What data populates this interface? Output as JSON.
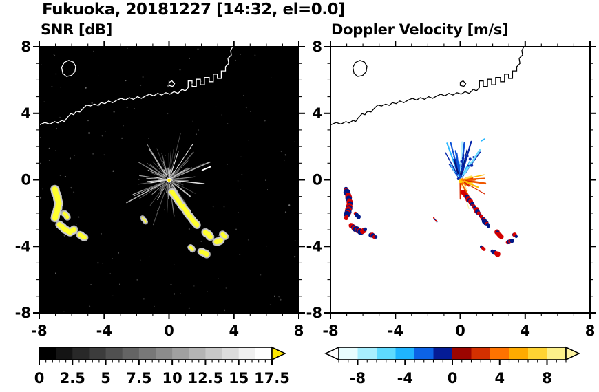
{
  "title": "Fukuoka, 20181227 [14:32, el=0.0]",
  "panels": {
    "snr": {
      "label": "SNR [dB]"
    },
    "doppler": {
      "label": "Doppler Velocity [m/s]"
    }
  },
  "coastline": {
    "main": [
      [
        -8.0,
        3.3
      ],
      [
        -7.65,
        3.45
      ],
      [
        -7.35,
        3.35
      ],
      [
        -7.05,
        3.5
      ],
      [
        -6.85,
        3.42
      ],
      [
        -6.6,
        3.58
      ],
      [
        -6.45,
        3.5
      ],
      [
        -6.3,
        3.72
      ],
      [
        -6.05,
        3.98
      ],
      [
        -5.88,
        3.92
      ],
      [
        -5.72,
        4.12
      ],
      [
        -5.5,
        4.08
      ],
      [
        -5.28,
        4.32
      ],
      [
        -5.08,
        4.5
      ],
      [
        -4.85,
        4.44
      ],
      [
        -4.6,
        4.55
      ],
      [
        -4.38,
        4.48
      ],
      [
        -4.18,
        4.64
      ],
      [
        -3.95,
        4.58
      ],
      [
        -3.72,
        4.74
      ],
      [
        -3.48,
        4.64
      ],
      [
        -3.2,
        4.8
      ],
      [
        -2.95,
        4.9
      ],
      [
        -2.7,
        4.8
      ],
      [
        -2.45,
        4.94
      ],
      [
        -2.2,
        4.84
      ],
      [
        -1.95,
        5.0
      ],
      [
        -1.7,
        4.9
      ],
      [
        -1.45,
        5.04
      ],
      [
        -1.2,
        5.15
      ],
      [
        -0.95,
        5.05
      ],
      [
        -0.7,
        5.2
      ],
      [
        -0.45,
        5.1
      ],
      [
        -0.2,
        5.24
      ],
      [
        0.05,
        5.15
      ],
      [
        0.3,
        5.3
      ],
      [
        0.55,
        5.2
      ],
      [
        0.8,
        5.44
      ],
      [
        1.0,
        5.35
      ],
      [
        1.18,
        5.55
      ],
      [
        1.18,
        5.95
      ],
      [
        1.42,
        5.95
      ],
      [
        1.42,
        5.62
      ],
      [
        1.68,
        5.62
      ],
      [
        1.68,
        6.05
      ],
      [
        1.93,
        6.05
      ],
      [
        1.93,
        5.72
      ],
      [
        2.18,
        5.72
      ],
      [
        2.18,
        6.15
      ],
      [
        2.48,
        6.15
      ],
      [
        2.48,
        5.9
      ],
      [
        2.73,
        5.9
      ],
      [
        2.73,
        6.35
      ],
      [
        2.98,
        6.35
      ],
      [
        2.98,
        6.1
      ],
      [
        3.22,
        6.1
      ],
      [
        3.22,
        6.55
      ],
      [
        3.48,
        6.55
      ],
      [
        3.48,
        6.8
      ],
      [
        3.68,
        7.0
      ],
      [
        3.63,
        7.3
      ],
      [
        3.84,
        7.5
      ],
      [
        3.8,
        7.78
      ],
      [
        3.95,
        8.05
      ]
    ],
    "island": [
      [
        -6.55,
        6.4
      ],
      [
        -6.32,
        6.22
      ],
      [
        -6.02,
        6.28
      ],
      [
        -5.8,
        6.5
      ],
      [
        -5.75,
        6.82
      ],
      [
        -5.9,
        7.08
      ],
      [
        -6.18,
        7.18
      ],
      [
        -6.46,
        7.06
      ],
      [
        -6.62,
        6.76
      ]
    ],
    "islet": [
      [
        0.0,
        5.68
      ],
      [
        0.22,
        5.62
      ],
      [
        0.34,
        5.78
      ],
      [
        0.18,
        5.95
      ],
      [
        0.0,
        5.86
      ]
    ]
  },
  "echo_tracks": [
    {
      "pts": [
        [
          -7.05,
          -0.55
        ],
        [
          -6.9,
          -1.0
        ],
        [
          -6.8,
          -1.45
        ],
        [
          -6.9,
          -1.95
        ],
        [
          -7.05,
          -2.3
        ]
      ],
      "w": 0.34
    },
    {
      "pts": [
        [
          -6.45,
          -2.0
        ],
        [
          -6.28,
          -2.22
        ]
      ],
      "w": 0.22
    },
    {
      "pts": [
        [
          -6.75,
          -2.7
        ],
        [
          -6.45,
          -2.95
        ],
        [
          -6.1,
          -3.15
        ],
        [
          -5.85,
          -3.0
        ]
      ],
      "w": 0.3
    },
    {
      "pts": [
        [
          -5.5,
          -3.3
        ],
        [
          -5.22,
          -3.45
        ]
      ],
      "w": 0.26
    },
    {
      "pts": [
        [
          0.18,
          -0.72
        ],
        [
          0.5,
          -1.15
        ],
        [
          0.82,
          -1.58
        ],
        [
          1.12,
          -1.98
        ],
        [
          1.45,
          -2.42
        ],
        [
          1.75,
          -2.75
        ]
      ],
      "w": 0.26
    },
    {
      "pts": [
        [
          2.25,
          -3.15
        ],
        [
          2.55,
          -3.4
        ]
      ],
      "w": 0.3
    },
    {
      "pts": [
        [
          2.9,
          -3.75
        ],
        [
          3.2,
          -3.65
        ]
      ],
      "w": 0.3
    },
    {
      "pts": [
        [
          3.3,
          -3.28
        ],
        [
          3.46,
          -3.4
        ]
      ],
      "w": 0.24
    },
    {
      "pts": [
        [
          2.0,
          -4.3
        ],
        [
          2.32,
          -4.46
        ]
      ],
      "w": 0.28
    },
    {
      "pts": [
        [
          1.3,
          -4.05
        ],
        [
          1.46,
          -4.16
        ]
      ],
      "w": 0.18
    },
    {
      "pts": [
        [
          -1.65,
          -2.3
        ],
        [
          -1.45,
          -2.52
        ]
      ],
      "w": 0.1
    }
  ],
  "chart_data": [
    {
      "id": "snr",
      "type": "heatmap",
      "title": "SNR [dB]",
      "xlim": [
        -8,
        8
      ],
      "ylim": [
        -8,
        8
      ],
      "xticks": [
        -8,
        -4,
        0,
        4,
        8
      ],
      "yticks": [
        -8,
        -4,
        0,
        4,
        8
      ],
      "minor_tick_step": 1,
      "background": "#000000",
      "coast_color": "#ffffff",
      "colorbar": {
        "range": [
          0,
          17.5
        ],
        "tick_labels": [
          0,
          2.5,
          5,
          7.5,
          10,
          12.5,
          15,
          17.5
        ],
        "minor_step": 0.5,
        "segments": [
          "#000000",
          "#141414",
          "#282828",
          "#3c3c3c",
          "#505050",
          "#646464",
          "#787878",
          "#8c8c8c",
          "#a0a0a0",
          "#b4b4b4",
          "#c8c8c8",
          "#dcdcdc",
          "#f0f0f0",
          "#ffffff"
        ],
        "arrow_right": "#ffe800"
      },
      "features": {
        "streaks": {
          "count": 135,
          "seed": 11
        },
        "noise": {
          "count": 150,
          "seed": 5
        },
        "echo_core": "#ffff2e",
        "echo_fringe": "#cccccc",
        "center_dots": [
          {
            "x": 0,
            "y": -0.02,
            "r": 3.5,
            "color": "#ffffff"
          },
          {
            "x": 0,
            "y": -0.02,
            "r": 2.2,
            "color": "#ffe800"
          }
        ],
        "extra_dashes": [
          {
            "x1": 2.05,
            "y1": 0.58,
            "x2": 2.55,
            "y2": 0.78,
            "color": "#ffffff",
            "w": 2
          }
        ]
      }
    },
    {
      "id": "doppler",
      "type": "heatmap",
      "title": "Doppler Velocity [m/s]",
      "xlim": [
        -8,
        8
      ],
      "ylim": [
        -8,
        8
      ],
      "xticks": [
        -8,
        -4,
        0,
        4,
        8
      ],
      "yticks": [
        -8,
        -4,
        0,
        4,
        8
      ],
      "minor_tick_step": 1,
      "background": "#ffffff",
      "coast_color": "#000000",
      "colorbar": {
        "range": [
          -9.6,
          9.6
        ],
        "tick_labels": [
          -8,
          -4,
          0,
          4,
          8
        ],
        "minor_step": 0.8,
        "segments": [
          "#e8fdff",
          "#a8efff",
          "#5edaff",
          "#1fb4ff",
          "#0c63e6",
          "#051c96",
          "#9c0500",
          "#d43000",
          "#ff7300",
          "#ffab00",
          "#ffd433",
          "#fcf08a"
        ],
        "arrow_left": "#ffffff",
        "arrow_right": "#fdf3a0"
      },
      "features": {
        "fan_up": {
          "seed": 21,
          "count": 38,
          "angle": [
            46,
            134
          ],
          "r0": [
            0.1,
            0.5
          ],
          "len": [
            0.3,
            2.2
          ],
          "width": [
            1,
            2.8
          ],
          "colors": [
            "#b5f1ff",
            "#6fdcff",
            "#2cb8ff",
            "#0d86f2",
            "#0a50d6",
            "#0726a8",
            "#021378"
          ]
        },
        "fan_down": {
          "seed": 33,
          "count": 28,
          "angle": [
            -95,
            22
          ],
          "r0": [
            0.08,
            0.38
          ],
          "len": [
            0.25,
            1.45
          ],
          "width": [
            1,
            2.8
          ],
          "colors": [
            "#fff2a8",
            "#ffdd55",
            "#ffbb00",
            "#ff8c00",
            "#f05800",
            "#d92800"
          ]
        },
        "navy_dots": {
          "seed": 8,
          "count": 9,
          "x": [
            0.05,
            0.85
          ],
          "y": [
            0.6,
            1.7
          ],
          "r": [
            1.2,
            3.0
          ],
          "color": "#0a2db0"
        },
        "echo_pos": "#d40000",
        "echo_neg": "#001787",
        "center_dots": [
          {
            "x": 0.02,
            "y": -0.08,
            "r": 3,
            "color": "#ffcc00"
          },
          {
            "x": -0.12,
            "y": 0.06,
            "r": 2,
            "color": "#0726a8"
          },
          {
            "x": 0.14,
            "y": 0.02,
            "r": 2,
            "color": "#ff8c00"
          }
        ],
        "extra_dashes": [
          {
            "x1": 1.3,
            "y1": 2.35,
            "x2": 1.5,
            "y2": 2.45,
            "color": "#2cb8ff",
            "w": 2
          }
        ]
      }
    }
  ]
}
